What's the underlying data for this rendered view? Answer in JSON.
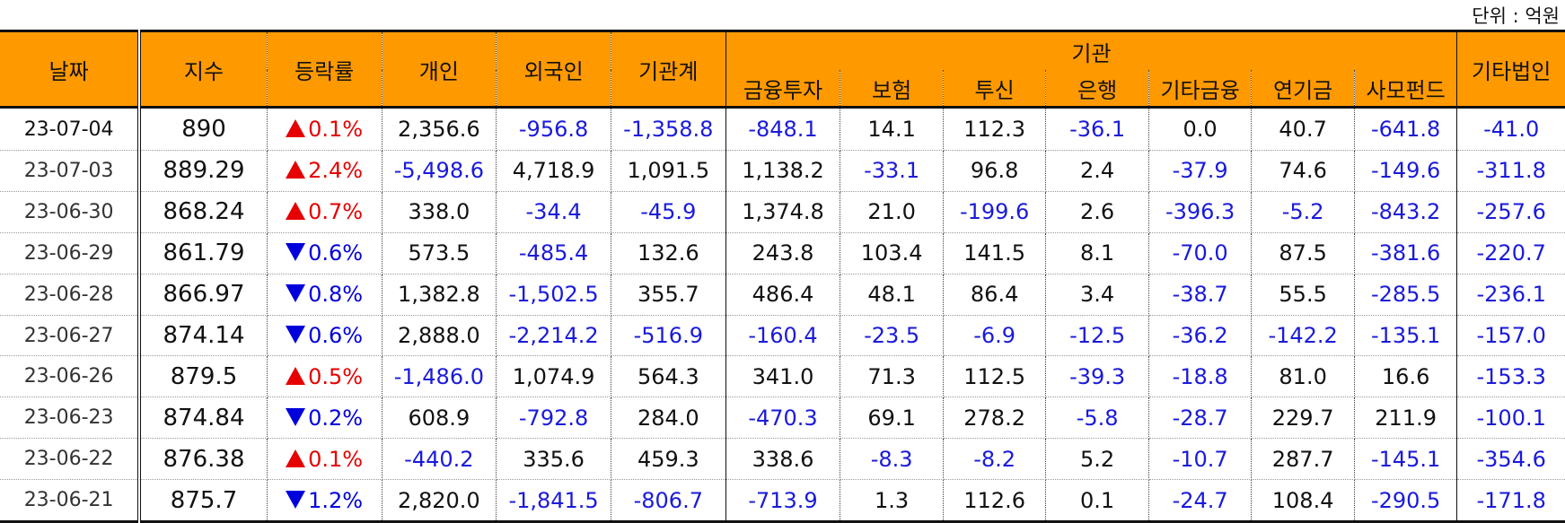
{
  "unit_label": "단위 : 억원",
  "headers": {
    "date": "날짜",
    "index": "지수",
    "change": "등락률",
    "individual": "개인",
    "foreign": "외국인",
    "inst_total": "기관계",
    "institution": "기관",
    "financial_investment": "금융투자",
    "insurance": "보험",
    "investment_trust": "투신",
    "bank": "은행",
    "other_finance": "기타금융",
    "pension": "연기금",
    "private_fund": "사모펀드",
    "other_corp": "기타법인"
  },
  "rows": [
    {
      "date": "23-07-04",
      "index": "890",
      "dir": "up",
      "change": "0.1%",
      "individual": "2,356.6",
      "foreign": "-956.8",
      "inst_total": "-1,358.8",
      "financial_investment": "-848.1",
      "insurance": "14.1",
      "investment_trust": "112.3",
      "bank": "-36.1",
      "other_finance": "0.0",
      "pension": "40.7",
      "private_fund": "-641.8",
      "other_corp": "-41.0"
    },
    {
      "date": "23-07-03",
      "index": "889.29",
      "dir": "up",
      "change": "2.4%",
      "individual": "-5,498.6",
      "foreign": "4,718.9",
      "inst_total": "1,091.5",
      "financial_investment": "1,138.2",
      "insurance": "-33.1",
      "investment_trust": "96.8",
      "bank": "2.4",
      "other_finance": "-37.9",
      "pension": "74.6",
      "private_fund": "-149.6",
      "other_corp": "-311.8"
    },
    {
      "date": "23-06-30",
      "index": "868.24",
      "dir": "up",
      "change": "0.7%",
      "individual": "338.0",
      "foreign": "-34.4",
      "inst_total": "-45.9",
      "financial_investment": "1,374.8",
      "insurance": "21.0",
      "investment_trust": "-199.6",
      "bank": "2.6",
      "other_finance": "-396.3",
      "pension": "-5.2",
      "private_fund": "-843.2",
      "other_corp": "-257.6"
    },
    {
      "date": "23-06-29",
      "index": "861.79",
      "dir": "down",
      "change": "0.6%",
      "individual": "573.5",
      "foreign": "-485.4",
      "inst_total": "132.6",
      "financial_investment": "243.8",
      "insurance": "103.4",
      "investment_trust": "141.5",
      "bank": "8.1",
      "other_finance": "-70.0",
      "pension": "87.5",
      "private_fund": "-381.6",
      "other_corp": "-220.7"
    },
    {
      "date": "23-06-28",
      "index": "866.97",
      "dir": "down",
      "change": "0.8%",
      "individual": "1,382.8",
      "foreign": "-1,502.5",
      "inst_total": "355.7",
      "financial_investment": "486.4",
      "insurance": "48.1",
      "investment_trust": "86.4",
      "bank": "3.4",
      "other_finance": "-38.7",
      "pension": "55.5",
      "private_fund": "-285.5",
      "other_corp": "-236.1"
    },
    {
      "date": "23-06-27",
      "index": "874.14",
      "dir": "down",
      "change": "0.6%",
      "individual": "2,888.0",
      "foreign": "-2,214.2",
      "inst_total": "-516.9",
      "financial_investment": "-160.4",
      "insurance": "-23.5",
      "investment_trust": "-6.9",
      "bank": "-12.5",
      "other_finance": "-36.2",
      "pension": "-142.2",
      "private_fund": "-135.1",
      "other_corp": "-157.0"
    },
    {
      "date": "23-06-26",
      "index": "879.5",
      "dir": "up",
      "change": "0.5%",
      "individual": "-1,486.0",
      "foreign": "1,074.9",
      "inst_total": "564.3",
      "financial_investment": "341.0",
      "insurance": "71.3",
      "investment_trust": "112.5",
      "bank": "-39.3",
      "other_finance": "-18.8",
      "pension": "81.0",
      "private_fund": "16.6",
      "other_corp": "-153.3"
    },
    {
      "date": "23-06-23",
      "index": "874.84",
      "dir": "down",
      "change": "0.2%",
      "individual": "608.9",
      "foreign": "-792.8",
      "inst_total": "284.0",
      "financial_investment": "-470.3",
      "insurance": "69.1",
      "investment_trust": "278.2",
      "bank": "-5.8",
      "other_finance": "-28.7",
      "pension": "229.7",
      "private_fund": "211.9",
      "other_corp": "-100.1"
    },
    {
      "date": "23-06-22",
      "index": "876.38",
      "dir": "up",
      "change": "0.1%",
      "individual": "-440.2",
      "foreign": "335.6",
      "inst_total": "459.3",
      "financial_investment": "338.6",
      "insurance": "-8.3",
      "investment_trust": "-8.2",
      "bank": "5.2",
      "other_finance": "-10.7",
      "pension": "287.7",
      "private_fund": "-145.1",
      "other_corp": "-354.6"
    },
    {
      "date": "23-06-21",
      "index": "875.7",
      "dir": "down",
      "change": "1.2%",
      "individual": "2,820.0",
      "foreign": "-1,841.5",
      "inst_total": "-806.7",
      "financial_investment": "-713.9",
      "insurance": "1.3",
      "investment_trust": "112.6",
      "bank": "0.1",
      "other_finance": "-24.7",
      "pension": "108.4",
      "private_fund": "-290.5",
      "other_corp": "-171.8"
    }
  ],
  "colors": {
    "header_bg": "#ff9900",
    "up": "#e60000",
    "down": "#0000dd",
    "negative": "#1a1adb"
  }
}
